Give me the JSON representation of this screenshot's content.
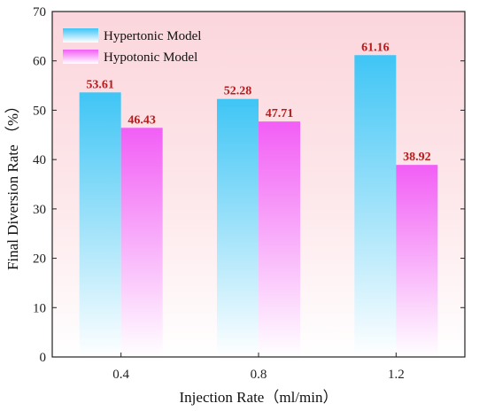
{
  "chart_data": {
    "type": "bar",
    "xlabel": "Injection Rate（ml/min）",
    "ylabel": "Final Diversion Rate （%）",
    "categories": [
      "0.4",
      "0.8",
      "1.2"
    ],
    "ylim": [
      0,
      70
    ],
    "yticks": [
      "0",
      "10",
      "20",
      "30",
      "40",
      "50",
      "60",
      "70"
    ],
    "series": [
      {
        "name": "Hypertonic Model",
        "values": [
          53.61,
          52.28,
          61.16
        ],
        "labels": [
          "53.61",
          "52.28",
          "61.16"
        ],
        "color": "#3fc5f5"
      },
      {
        "name": "Hypotonic Model",
        "values": [
          46.43,
          47.71,
          38.92
        ],
        "labels": [
          "46.43",
          "47.71",
          "38.92"
        ],
        "color": "#f25ef5"
      }
    ],
    "legend_position": "top-left",
    "label_color": "#b71c1c",
    "background_gradient": [
      "#fbd9de",
      "#ffffff"
    ]
  }
}
